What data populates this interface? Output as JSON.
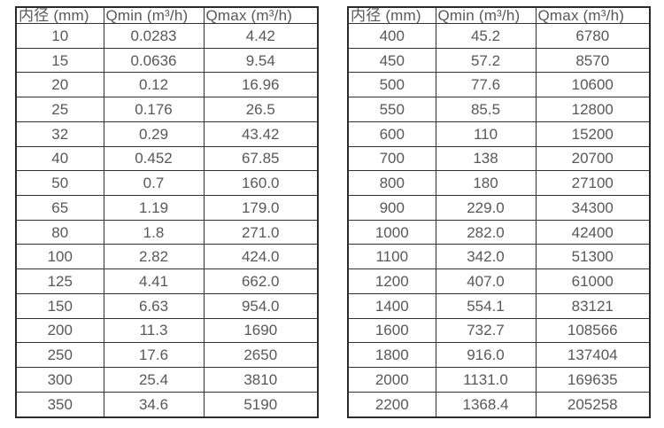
{
  "page": {
    "background_color": "#ffffff",
    "text_color": "#58585a",
    "border_color": "#2b2b2b"
  },
  "chart_data": [
    {
      "type": "table",
      "title": "",
      "columns": [
        "内径 (mm)",
        "Qmin (m³/h)",
        "Qmax (m³/h)"
      ],
      "rows": [
        [
          "10",
          "0.0283",
          "4.42"
        ],
        [
          "15",
          "0.0636",
          "9.54"
        ],
        [
          "20",
          "0.12",
          "16.96"
        ],
        [
          "25",
          "0.176",
          "26.5"
        ],
        [
          "32",
          "0.29",
          "43.42"
        ],
        [
          "40",
          "0.452",
          "67.85"
        ],
        [
          "50",
          "0.7",
          "160.0"
        ],
        [
          "65",
          "1.19",
          "179.0"
        ],
        [
          "80",
          "1.8",
          "271.0"
        ],
        [
          "100",
          "2.82",
          "424.0"
        ],
        [
          "125",
          "4.41",
          "662.0"
        ],
        [
          "150",
          "6.63",
          "954.0"
        ],
        [
          "200",
          "11.3",
          "1690"
        ],
        [
          "250",
          "17.6",
          "2650"
        ],
        [
          "300",
          "25.4",
          "3810"
        ],
        [
          "350",
          "34.6",
          "5190"
        ]
      ]
    },
    {
      "type": "table",
      "title": "",
      "columns": [
        "内径 (mm)",
        "Qmin (m³/h)",
        "Qmax (m³/h)"
      ],
      "rows": [
        [
          "400",
          "45.2",
          "6780"
        ],
        [
          "450",
          "57.2",
          "8570"
        ],
        [
          "500",
          "77.6",
          "10600"
        ],
        [
          "550",
          "85.5",
          "12800"
        ],
        [
          "600",
          "110",
          "15200"
        ],
        [
          "700",
          "138",
          "20700"
        ],
        [
          "800",
          "180",
          "27100"
        ],
        [
          "900",
          "229.0",
          "34300"
        ],
        [
          "1000",
          "282.0",
          "42400"
        ],
        [
          "1100",
          "342.0",
          "51300"
        ],
        [
          "1200",
          "407.0",
          "61000"
        ],
        [
          "1400",
          "554.1",
          "83121"
        ],
        [
          "1600",
          "732.7",
          "108566"
        ],
        [
          "1800",
          "916.0",
          "137404"
        ],
        [
          "2000",
          "1131.0",
          "169635"
        ],
        [
          "2200",
          "1368.4",
          "205258"
        ]
      ]
    }
  ]
}
